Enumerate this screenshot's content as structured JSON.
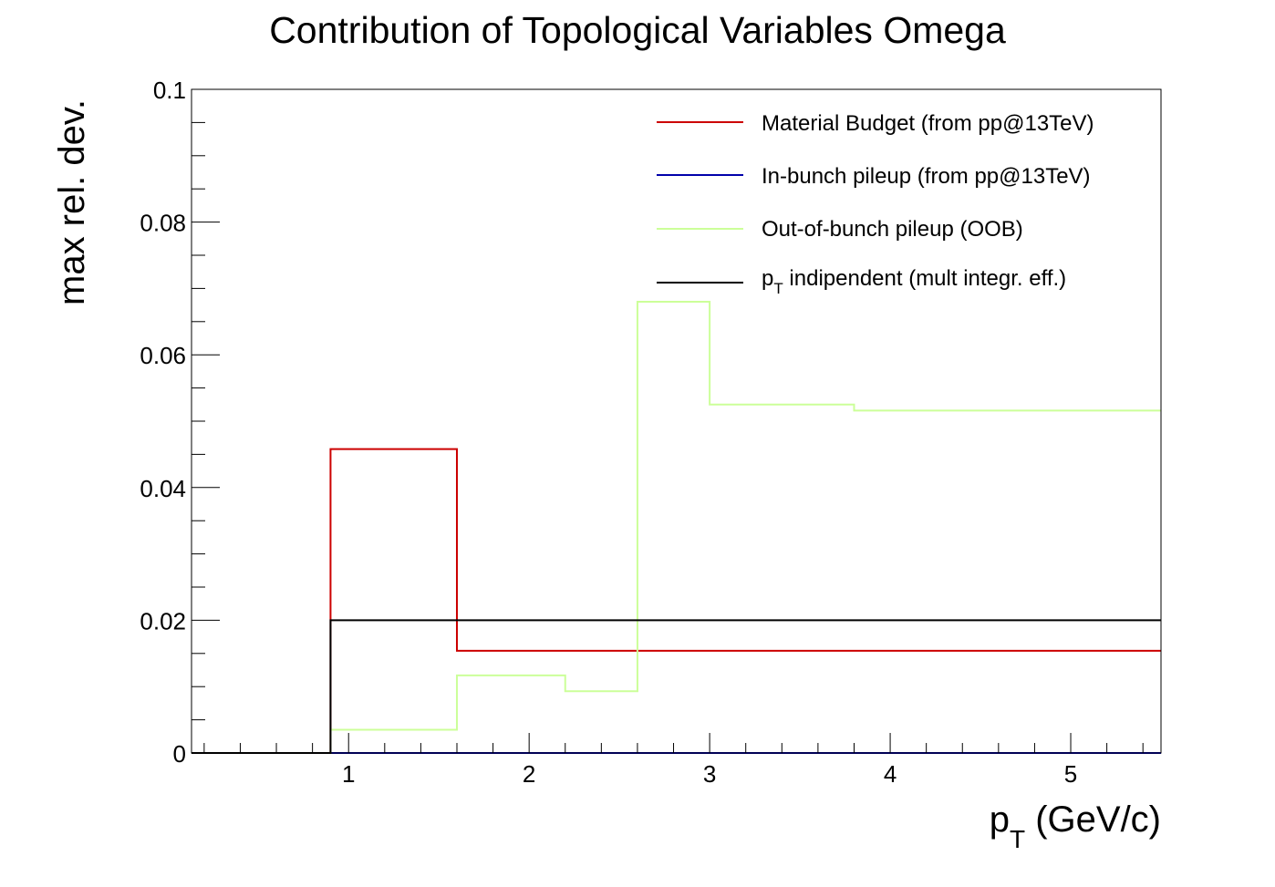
{
  "chart_data": {
    "type": "line",
    "style": "step histogram",
    "title": "Contribution of Topological Variables Omega",
    "xlabel_main": "p",
    "xlabel_sub": "T",
    "xlabel_unit": " (GeV/c)",
    "ylabel": "max rel. dev.",
    "xlim": [
      0.13,
      5.5
    ],
    "ylim": [
      0,
      0.1
    ],
    "x_ticks": [
      1,
      2,
      3,
      4,
      5
    ],
    "x_tick_labels": [
      "1",
      "2",
      "3",
      "4",
      "5"
    ],
    "y_ticks": [
      0,
      0.02,
      0.04,
      0.06,
      0.08,
      0.1
    ],
    "y_tick_labels": [
      "0",
      "0.02",
      "0.04",
      "0.06",
      "0.08",
      "0.1"
    ],
    "grid": false,
    "legend_position": "top-right",
    "series": [
      {
        "name": "Material Budget (from pp@13TeV)",
        "color": "#cc0000",
        "bin_edges": [
          0.13,
          0.9,
          1.6,
          2.2,
          2.6,
          3.0,
          3.8,
          5.5
        ],
        "values": [
          0,
          0.0458,
          0.0154,
          0.0154,
          0.0154,
          0.0154,
          0.0154
        ]
      },
      {
        "name": "In-bunch pileup (from pp@13TeV)",
        "color": "#0000aa",
        "bin_edges": [
          0.13,
          0.9,
          1.6,
          2.2,
          2.6,
          3.0,
          3.8,
          5.5
        ],
        "values": [
          0,
          0,
          0,
          0,
          0,
          0,
          0
        ]
      },
      {
        "name": "Out-of-bunch pileup (OOB)",
        "color": "#ccff99",
        "bin_edges": [
          0.13,
          0.9,
          1.6,
          2.2,
          2.6,
          3.0,
          3.8,
          5.5
        ],
        "values": [
          0,
          0.0035,
          0.0117,
          0.0093,
          0.068,
          0.0525,
          0.0516
        ]
      },
      {
        "name_main": "p",
        "name_sub": "T",
        "name_rest": " indipendent (mult integr. eff.)",
        "color": "#000000",
        "bin_edges": [
          0.13,
          0.9,
          5.5
        ],
        "values": [
          0,
          0.02
        ]
      }
    ]
  }
}
